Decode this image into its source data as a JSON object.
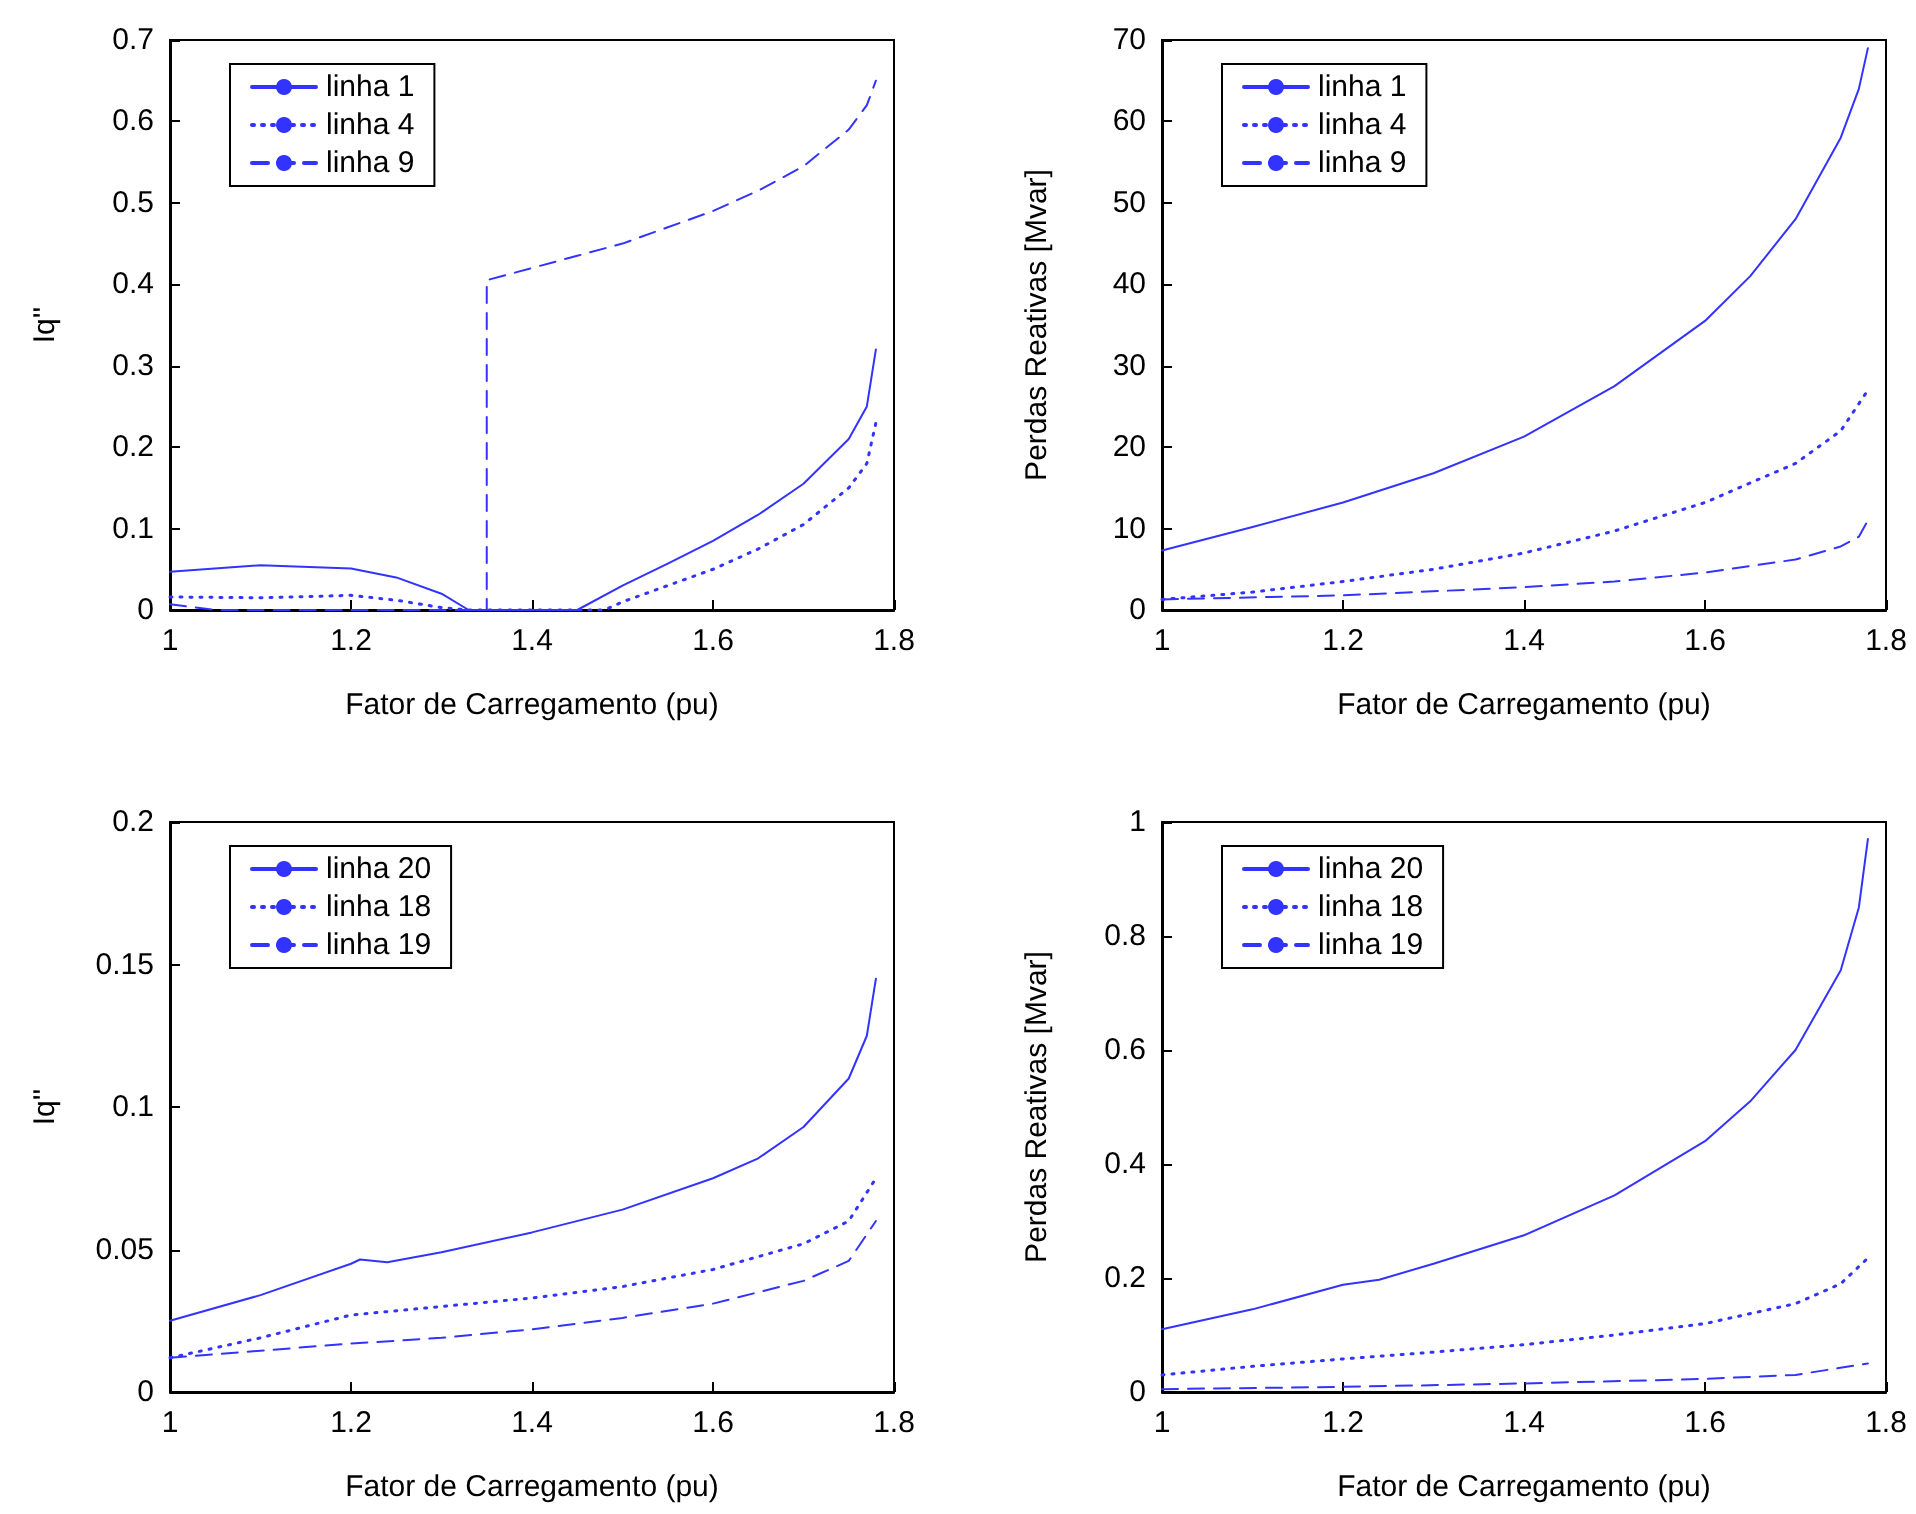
{
  "chart_data": [
    {
      "type": "line",
      "xlabel": "Fator de Carregamento (pu)",
      "ylabel": "Iq''",
      "legend": "top left",
      "grid": false,
      "marker": "none",
      "xlim": [
        1,
        1.8
      ],
      "xticks": [
        1,
        1.2,
        1.4,
        1.6,
        1.8
      ],
      "ylim": [
        0,
        0.7
      ],
      "yticks": [
        0,
        0.1,
        0.2,
        0.3,
        0.4,
        0.5,
        0.6,
        0.7
      ],
      "series": [
        {
          "name": "linha 1",
          "color": "#3333ff",
          "line_style": "solid",
          "x": [
            1,
            1.1,
            1.2,
            1.25,
            1.3,
            1.33,
            1.45,
            1.5,
            1.55,
            1.6,
            1.65,
            1.7,
            1.75,
            1.77,
            1.78
          ],
          "values": [
            0.047,
            0.055,
            0.051,
            0.04,
            0.02,
            0,
            0,
            0.03,
            0.057,
            0.085,
            0.117,
            0.155,
            0.21,
            0.25,
            0.32
          ]
        },
        {
          "name": "linha 4",
          "color": "#3333ff",
          "line_style": "dotted",
          "x": [
            1,
            1.1,
            1.2,
            1.25,
            1.3,
            1.33,
            1.48,
            1.5,
            1.55,
            1.6,
            1.65,
            1.7,
            1.75,
            1.77,
            1.78
          ],
          "values": [
            0.016,
            0.015,
            0.018,
            0.012,
            0.003,
            0,
            0,
            0.01,
            0.03,
            0.05,
            0.075,
            0.105,
            0.15,
            0.18,
            0.23
          ]
        },
        {
          "name": "linha 9",
          "color": "#3333ff",
          "line_style": "dashed",
          "x": [
            1,
            1.05,
            1.35,
            1.35,
            1.4,
            1.45,
            1.5,
            1.55,
            1.6,
            1.65,
            1.7,
            1.75,
            1.77,
            1.78
          ],
          "values": [
            0.007,
            0,
            0,
            0.405,
            0.42,
            0.435,
            0.45,
            0.47,
            0.49,
            0.515,
            0.545,
            0.59,
            0.62,
            0.65
          ]
        }
      ]
    },
    {
      "type": "line",
      "xlabel": "Fator de Carregamento (pu)",
      "ylabel": "Perdas Reativas [Mvar]",
      "legend": "top left",
      "grid": false,
      "marker": "none",
      "xlim": [
        1,
        1.8
      ],
      "xticks": [
        1,
        1.2,
        1.4,
        1.6,
        1.8
      ],
      "ylim": [
        0,
        70
      ],
      "yticks": [
        0,
        10,
        20,
        30,
        40,
        50,
        60,
        70
      ],
      "series": [
        {
          "name": "linha 1",
          "color": "#3333ff",
          "line_style": "solid",
          "x": [
            1,
            1.1,
            1.2,
            1.3,
            1.4,
            1.5,
            1.6,
            1.65,
            1.7,
            1.75,
            1.77,
            1.78
          ],
          "values": [
            7.3,
            10.2,
            13.2,
            16.8,
            21.3,
            27.5,
            35.5,
            41,
            48,
            58,
            64,
            69
          ]
        },
        {
          "name": "linha 4",
          "color": "#3333ff",
          "line_style": "dotted",
          "x": [
            1,
            1.1,
            1.2,
            1.3,
            1.4,
            1.5,
            1.6,
            1.7,
            1.75,
            1.78
          ],
          "values": [
            1.3,
            2.2,
            3.5,
            5,
            7,
            9.7,
            13.2,
            18,
            22,
            27
          ]
        },
        {
          "name": "linha 9",
          "color": "#3333ff",
          "line_style": "dashed",
          "x": [
            1,
            1.2,
            1.4,
            1.5,
            1.6,
            1.7,
            1.75,
            1.77,
            1.78
          ],
          "values": [
            1.3,
            1.8,
            2.8,
            3.5,
            4.6,
            6.2,
            7.8,
            9,
            11
          ]
        }
      ]
    },
    {
      "type": "line",
      "xlabel": "Fator de Carregamento (pu)",
      "ylabel": "Iq''",
      "legend": "top left",
      "grid": false,
      "marker": "none",
      "xlim": [
        1,
        1.8
      ],
      "xticks": [
        1,
        1.2,
        1.4,
        1.6,
        1.8
      ],
      "ylim": [
        0,
        0.2
      ],
      "yticks": [
        0,
        0.05,
        0.1,
        0.15,
        0.2
      ],
      "series": [
        {
          "name": "linha 20",
          "color": "#3333ff",
          "line_style": "solid",
          "x": [
            1,
            1.1,
            1.2,
            1.21,
            1.24,
            1.3,
            1.4,
            1.5,
            1.6,
            1.65,
            1.7,
            1.75,
            1.77,
            1.78
          ],
          "values": [
            0.025,
            0.034,
            0.045,
            0.0465,
            0.0455,
            0.049,
            0.056,
            0.064,
            0.075,
            0.082,
            0.093,
            0.11,
            0.125,
            0.145
          ]
        },
        {
          "name": "linha 18",
          "color": "#3333ff",
          "line_style": "dotted",
          "x": [
            1,
            1.1,
            1.2,
            1.3,
            1.4,
            1.5,
            1.6,
            1.7,
            1.75,
            1.78
          ],
          "values": [
            0.012,
            0.019,
            0.027,
            0.03,
            0.033,
            0.037,
            0.043,
            0.052,
            0.06,
            0.075
          ]
        },
        {
          "name": "linha 19",
          "color": "#3333ff",
          "line_style": "dashed",
          "x": [
            1,
            1.2,
            1.3,
            1.4,
            1.5,
            1.6,
            1.7,
            1.75,
            1.78
          ],
          "values": [
            0.012,
            0.017,
            0.019,
            0.022,
            0.026,
            0.031,
            0.039,
            0.046,
            0.06
          ]
        }
      ]
    },
    {
      "type": "line",
      "xlabel": "Fator de Carregamento (pu)",
      "ylabel": "Perdas Reativas [Mvar]",
      "legend": "top left",
      "grid": false,
      "marker": "none",
      "xlim": [
        1,
        1.8
      ],
      "xticks": [
        1,
        1.2,
        1.4,
        1.6,
        1.8
      ],
      "ylim": [
        0,
        1
      ],
      "yticks": [
        0,
        0.2,
        0.4,
        0.6,
        0.8,
        1
      ],
      "series": [
        {
          "name": "linha 20",
          "color": "#3333ff",
          "line_style": "solid",
          "x": [
            1,
            1.1,
            1.2,
            1.24,
            1.3,
            1.4,
            1.5,
            1.6,
            1.65,
            1.7,
            1.75,
            1.77,
            1.78
          ],
          "values": [
            0.11,
            0.145,
            0.188,
            0.197,
            0.225,
            0.275,
            0.345,
            0.44,
            0.51,
            0.6,
            0.74,
            0.85,
            0.97
          ]
        },
        {
          "name": "linha 18",
          "color": "#3333ff",
          "line_style": "dotted",
          "x": [
            1,
            1.1,
            1.2,
            1.3,
            1.4,
            1.5,
            1.6,
            1.7,
            1.75,
            1.78
          ],
          "values": [
            0.03,
            0.045,
            0.058,
            0.07,
            0.083,
            0.1,
            0.12,
            0.155,
            0.19,
            0.235
          ]
        },
        {
          "name": "linha 19",
          "color": "#3333ff",
          "line_style": "dashed",
          "x": [
            1,
            1.2,
            1.4,
            1.6,
            1.7,
            1.78
          ],
          "values": [
            0.005,
            0.009,
            0.015,
            0.023,
            0.03,
            0.05
          ]
        }
      ]
    }
  ]
}
